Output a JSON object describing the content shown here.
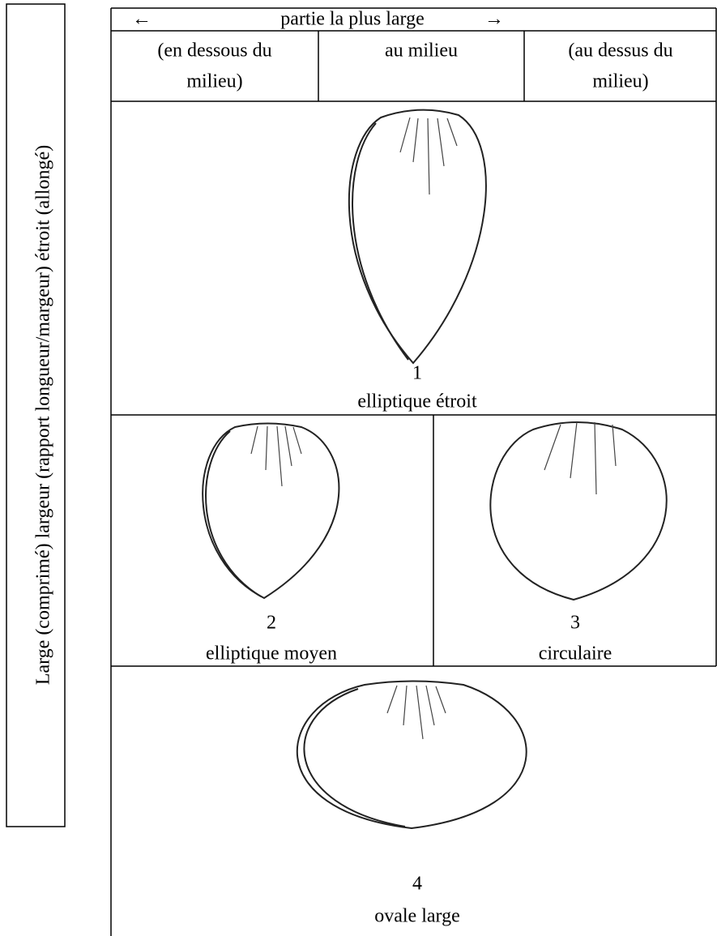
{
  "side_label": "Large  (comprimé) largeur (rapport longueur/margeur) étroit (allongé)",
  "header": {
    "left_arrow": "←",
    "title": "partie la plus large",
    "right_arrow": "→",
    "columns": [
      [
        "(en dessous du",
        "milieu)"
      ],
      [
        "au milieu"
      ],
      [
        "(au dessus du",
        "milieu)"
      ]
    ]
  },
  "figures": [
    {
      "number": "1",
      "label": "elliptique étroit"
    },
    {
      "number": "2",
      "label": "elliptique moyen"
    },
    {
      "number": "3",
      "label": "circulaire"
    },
    {
      "number": "4",
      "label": "ovale large"
    }
  ]
}
